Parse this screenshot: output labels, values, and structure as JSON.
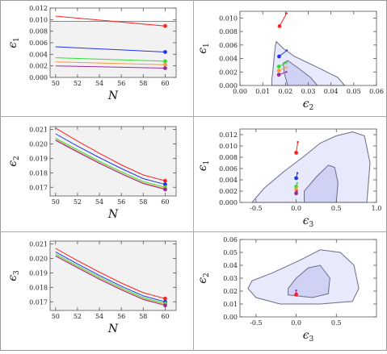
{
  "colors": {
    "red": "#ff2020",
    "blue": "#2233ee",
    "green": "#33dd33",
    "orange": "#ff9933",
    "purple": "#9a2aa0",
    "gray_line": "#888888",
    "inner_fill": "#cfd2f5",
    "outer_fill": "#e8e9fb",
    "contour_stroke": "#6b6b88",
    "shade": "#f2f2f2",
    "frame": "#555555"
  },
  "chart_data": [
    {
      "id": "p11",
      "type": "line",
      "xlabel": "N",
      "ylabel": "ϵ1",
      "xlim": [
        49.5,
        61
      ],
      "ylim": [
        0,
        0.012
      ],
      "xticks": [
        50,
        52,
        54,
        56,
        58,
        60
      ],
      "yticks": [
        0.0,
        0.002,
        0.004,
        0.006,
        0.008,
        0.01,
        0.012
      ],
      "xtick_labels": [
        "50",
        "52",
        "54",
        "56",
        "58",
        "60"
      ],
      "ytick_labels": [
        "0.000",
        "0.002",
        "0.004",
        "0.006",
        "0.008",
        "0.010",
        "0.012"
      ],
      "shade_below": 0.0097,
      "hline": 0.0097,
      "x": [
        50,
        60
      ],
      "series": [
        {
          "color": "red",
          "values": [
            0.0106,
            0.0089
          ]
        },
        {
          "color": "blue",
          "values": [
            0.0053,
            0.0044
          ]
        },
        {
          "color": "green",
          "values": [
            0.0034,
            0.0028
          ]
        },
        {
          "color": "orange",
          "values": [
            0.0027,
            0.0022
          ]
        },
        {
          "color": "purple",
          "values": [
            0.002,
            0.0016
          ]
        }
      ]
    },
    {
      "id": "p12",
      "type": "contour",
      "xlabel": "ϵ2",
      "ylabel": "ϵ1",
      "xlim": [
        0,
        0.06
      ],
      "ylim": [
        0,
        0.011
      ],
      "xticks": [
        0.0,
        0.01,
        0.02,
        0.03,
        0.04,
        0.05,
        0.06
      ],
      "yticks": [
        0.0,
        0.002,
        0.004,
        0.006,
        0.008,
        0.01
      ],
      "xtick_labels": [
        "0.00",
        "0.01",
        "0.02",
        "0.03",
        "0.04",
        "0.05",
        "0.06"
      ],
      "ytick_labels": [
        "0.000",
        "0.002",
        "0.004",
        "0.006",
        "0.008",
        "0.010"
      ],
      "outer": [
        [
          0.014,
          0
        ],
        [
          0.046,
          0
        ],
        [
          0.043,
          0.0012
        ],
        [
          0.034,
          0.0027
        ],
        [
          0.024,
          0.0043
        ],
        [
          0.019,
          0.0055
        ],
        [
          0.016,
          0.0065
        ],
        [
          0.0155,
          0.0058
        ],
        [
          0.015,
          0.0042
        ],
        [
          0.0145,
          0.0022
        ],
        [
          0.014,
          0.0008
        ]
      ],
      "inner": [
        [
          0.021,
          0
        ],
        [
          0.034,
          0
        ],
        [
          0.031,
          0.0012
        ],
        [
          0.026,
          0.0025
        ],
        [
          0.021,
          0.0037
        ],
        [
          0.019,
          0.0033
        ],
        [
          0.0195,
          0.0018
        ]
      ],
      "series": [
        {
          "color": "red",
          "points": [
            [
              0.0174,
              0.0088
            ],
            [
              0.0205,
              0.0107
            ]
          ]
        },
        {
          "color": "blue",
          "points": [
            [
              0.0172,
              0.0043
            ],
            [
              0.0206,
              0.0052
            ]
          ]
        },
        {
          "color": "green",
          "points": [
            [
              0.0171,
              0.0028
            ],
            [
              0.0205,
              0.0034
            ]
          ]
        },
        {
          "color": "orange",
          "points": [
            [
              0.0171,
              0.0022
            ],
            [
              0.0204,
              0.0027
            ]
          ]
        },
        {
          "color": "purple",
          "points": [
            [
              0.0171,
              0.0016
            ],
            [
              0.0204,
              0.002
            ]
          ]
        }
      ]
    },
    {
      "id": "p21",
      "type": "line",
      "xlabel": "N",
      "ylabel": "ϵ2",
      "xlim": [
        49.5,
        61
      ],
      "ylim": [
        0.0164,
        0.0212
      ],
      "xticks": [
        50,
        52,
        54,
        56,
        58,
        60
      ],
      "yticks": [
        0.017,
        0.018,
        0.019,
        0.02,
        0.021
      ],
      "xtick_labels": [
        "50",
        "52",
        "54",
        "56",
        "58",
        "60"
      ],
      "ytick_labels": [
        "0.017",
        "0.018",
        "0.019",
        "0.020",
        "0.021"
      ],
      "x": [
        50,
        52,
        54,
        56,
        58,
        60
      ],
      "series": [
        {
          "color": "red",
          "values": [
            0.0211,
            0.0202,
            0.01935,
            0.01855,
            0.01785,
            0.01745
          ]
        },
        {
          "color": "blue",
          "values": [
            0.0207,
            0.01985,
            0.01905,
            0.0183,
            0.0176,
            0.0172
          ]
        },
        {
          "color": "green",
          "values": [
            0.0204,
            0.01958,
            0.0188,
            0.01807,
            0.0174,
            0.017
          ]
        },
        {
          "color": "orange",
          "values": [
            0.0203,
            0.01948,
            0.0187,
            0.01797,
            0.0173,
            0.0169
          ]
        },
        {
          "color": "purple",
          "values": [
            0.02025,
            0.01944,
            0.01866,
            0.01793,
            0.01726,
            0.01685
          ]
        }
      ]
    },
    {
      "id": "p22",
      "type": "contour",
      "xlabel": "ϵ3",
      "ylabel": "ϵ1",
      "xlim": [
        -0.7,
        1.0
      ],
      "ylim": [
        0,
        0.013
      ],
      "xticks": [
        -0.5,
        0.0,
        0.5,
        1.0
      ],
      "yticks": [
        0.0,
        0.002,
        0.004,
        0.006,
        0.008,
        0.01,
        0.012
      ],
      "xtick_labels": [
        "-0.5",
        "0.0",
        "0.5",
        "1.0"
      ],
      "ytick_labels": [
        "0.000",
        "0.002",
        "0.004",
        "0.006",
        "0.008",
        "0.010",
        "0.012"
      ],
      "outer": [
        [
          -0.55,
          0
        ],
        [
          0.88,
          0
        ],
        [
          0.92,
          0.007
        ],
        [
          0.85,
          0.0118
        ],
        [
          0.7,
          0.0125
        ],
        [
          0.5,
          0.0118
        ],
        [
          0.3,
          0.0105
        ],
        [
          0.1,
          0.0082
        ],
        [
          -0.15,
          0.0055
        ],
        [
          -0.4,
          0.0025
        ]
      ],
      "inner": [
        [
          0.1,
          0
        ],
        [
          0.5,
          0
        ],
        [
          0.52,
          0.0035
        ],
        [
          0.48,
          0.0062
        ],
        [
          0.4,
          0.0066
        ],
        [
          0.25,
          0.0045
        ],
        [
          0.1,
          0.002
        ]
      ],
      "series": [
        {
          "color": "red",
          "points": [
            [
              0.0,
              0.0088
            ],
            [
              0.02,
              0.0107
            ]
          ]
        },
        {
          "color": "blue",
          "points": [
            [
              0.0,
              0.0043
            ],
            [
              0.015,
              0.0052
            ]
          ]
        },
        {
          "color": "green",
          "points": [
            [
              0.0,
              0.0028
            ],
            [
              0.012,
              0.0034
            ]
          ]
        },
        {
          "color": "orange",
          "points": [
            [
              0.0,
              0.0022
            ],
            [
              0.01,
              0.0027
            ]
          ]
        },
        {
          "color": "purple",
          "points": [
            [
              0.0,
              0.0016
            ],
            [
              0.008,
              0.002
            ]
          ]
        }
      ]
    },
    {
      "id": "p31",
      "type": "line",
      "xlabel": "N",
      "ylabel": "ϵ3",
      "xlim": [
        49.5,
        61
      ],
      "ylim": [
        0.0164,
        0.0212
      ],
      "xticks": [
        50,
        52,
        54,
        56,
        58,
        60
      ],
      "yticks": [
        0.017,
        0.018,
        0.019,
        0.02,
        0.021
      ],
      "xtick_labels": [
        "50",
        "52",
        "54",
        "56",
        "58",
        "60"
      ],
      "ytick_labels": [
        "0.017",
        "0.018",
        "0.019",
        "0.020",
        "0.021"
      ],
      "shade_below": 0.0212,
      "x": [
        50,
        52,
        54,
        56,
        58,
        60
      ],
      "series": [
        {
          "color": "red",
          "values": [
            0.0207,
            0.01985,
            0.01905,
            0.0183,
            0.01763,
            0.01722
          ]
        },
        {
          "color": "blue",
          "values": [
            0.02045,
            0.01962,
            0.01882,
            0.01808,
            0.01741,
            0.017
          ]
        },
        {
          "color": "green",
          "values": [
            0.0203,
            0.01948,
            0.0187,
            0.01796,
            0.01729,
            0.01688
          ]
        },
        {
          "color": "orange",
          "values": [
            0.0202,
            0.01939,
            0.0186,
            0.01787,
            0.0172,
            0.01679
          ]
        },
        {
          "color": "purple",
          "values": [
            0.02016,
            0.01935,
            0.01856,
            0.01783,
            0.01716,
            0.01675
          ]
        }
      ]
    },
    {
      "id": "p32",
      "type": "contour",
      "xlabel": "ϵ3",
      "ylabel": "ϵ2",
      "xlim": [
        -0.7,
        1.0
      ],
      "ylim": [
        0,
        0.06
      ],
      "xticks": [
        -0.5,
        0.0,
        0.5
      ],
      "yticks": [
        0.0,
        0.01,
        0.02,
        0.03,
        0.04,
        0.05,
        0.06
      ],
      "xtick_labels": [
        "-0.5",
        "0.0",
        "0.5"
      ],
      "ytick_labels": [
        "0.00",
        "0.01",
        "0.02",
        "0.03",
        "0.04",
        "0.05",
        "0.06"
      ],
      "outer": [
        [
          -0.6,
          0.022
        ],
        [
          -0.5,
          0.015
        ],
        [
          -0.2,
          0.01
        ],
        [
          0.3,
          0.01
        ],
        [
          0.7,
          0.012
        ],
        [
          0.78,
          0.022
        ],
        [
          0.72,
          0.04
        ],
        [
          0.55,
          0.05
        ],
        [
          0.3,
          0.052
        ],
        [
          0.05,
          0.044
        ],
        [
          -0.3,
          0.034
        ],
        [
          -0.55,
          0.028
        ]
      ],
      "inner": [
        [
          -0.1,
          0.017
        ],
        [
          0.2,
          0.015
        ],
        [
          0.4,
          0.018
        ],
        [
          0.42,
          0.03
        ],
        [
          0.3,
          0.04
        ],
        [
          0.15,
          0.038
        ],
        [
          0.0,
          0.03
        ],
        [
          -0.1,
          0.022
        ]
      ],
      "series": [
        {
          "color": "purple",
          "points": [
            [
              0.0,
              0.0172
            ],
            [
              0.0,
              0.0205
            ]
          ]
        },
        {
          "color": "red",
          "points": [
            [
              0.0,
              0.0174
            ],
            [
              0.0,
              0.0174
            ]
          ]
        }
      ]
    }
  ]
}
